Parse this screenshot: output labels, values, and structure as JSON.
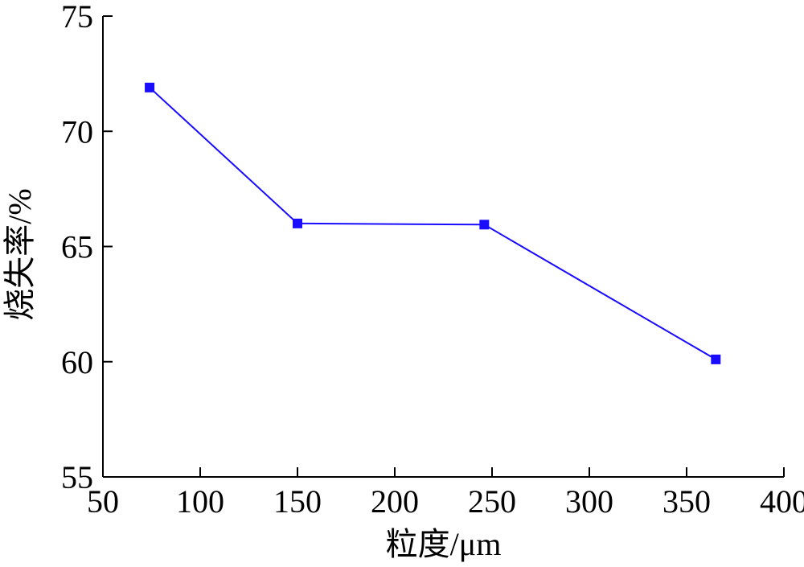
{
  "chart_data": {
    "type": "line",
    "title": "",
    "xlabel": "粒度/μm",
    "ylabel": "烧失率/%",
    "xlim": [
      50,
      400
    ],
    "ylim": [
      55,
      75
    ],
    "x_ticks": [
      50,
      100,
      150,
      200,
      250,
      300,
      350,
      400
    ],
    "y_ticks": [
      55,
      60,
      65,
      70,
      75
    ],
    "x_tick_labels": [
      "50",
      "100",
      "150",
      "200",
      "250",
      "300",
      "350",
      "400"
    ],
    "y_tick_labels": [
      "55",
      "60",
      "65",
      "70",
      "75"
    ],
    "grid": false,
    "legend": "none",
    "series": [
      {
        "x": [
          74,
          150,
          246,
          365
        ],
        "y": [
          71.9,
          66.0,
          65.95,
          60.1
        ],
        "color": "#1a0dff",
        "marker": "square"
      }
    ]
  }
}
